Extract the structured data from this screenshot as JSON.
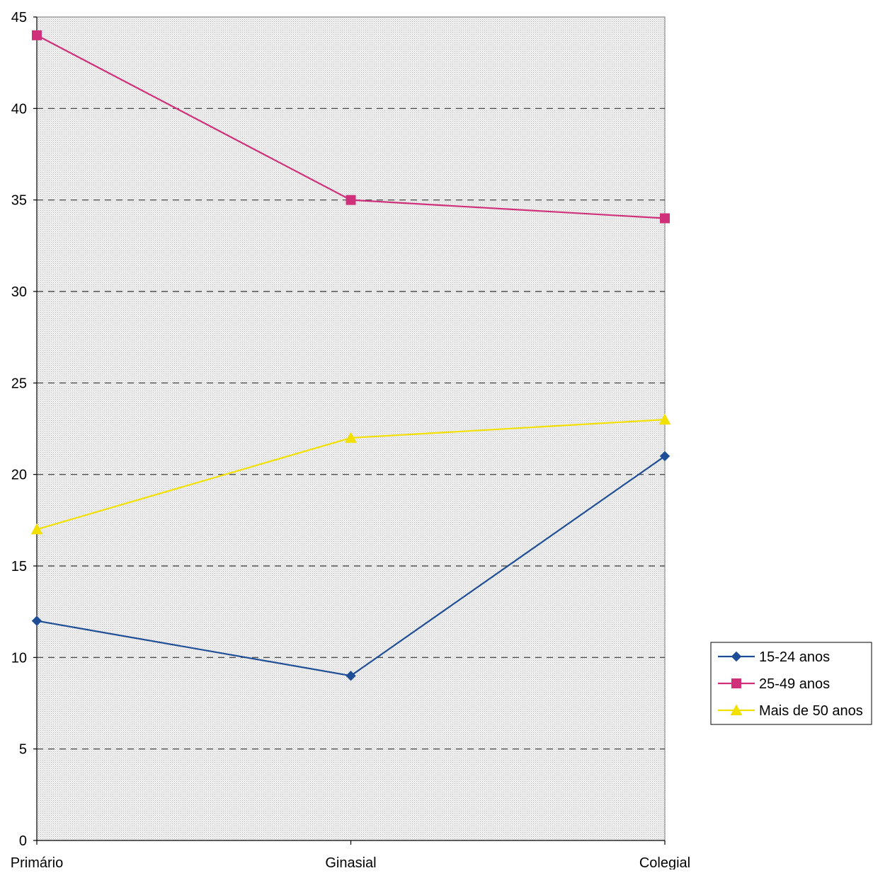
{
  "chart_data": {
    "type": "line",
    "title": "",
    "xlabel": "",
    "ylabel": "",
    "categories": [
      "Primário",
      "Ginasial",
      "Colegial"
    ],
    "ylim": [
      0,
      45
    ],
    "yticks": [
      0,
      5,
      10,
      15,
      20,
      25,
      30,
      35,
      40,
      45
    ],
    "grid": true,
    "legend_position": "right",
    "series": [
      {
        "name": "15-24 anos",
        "values": [
          12,
          9,
          21
        ],
        "color": "#1f4e96",
        "marker": "diamond"
      },
      {
        "name": "25-49 anos",
        "values": [
          44,
          35,
          34
        ],
        "color": "#d0307a",
        "marker": "square"
      },
      {
        "name": "Mais de 50 anos",
        "values": [
          17,
          22,
          23
        ],
        "color": "#f2e000",
        "marker": "triangle"
      }
    ]
  }
}
